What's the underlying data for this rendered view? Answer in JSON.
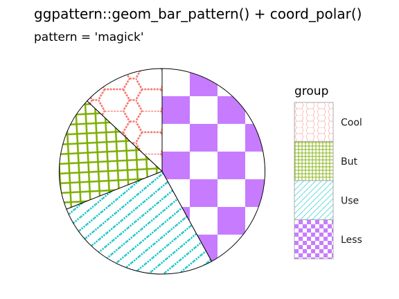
{
  "chart_data": {
    "type": "pie",
    "title": "ggpattern::geom_bar_pattern() + coord_polar()",
    "subtitle": "pattern = 'magick'",
    "legend": {
      "title": "group",
      "placement": "right"
    },
    "slices": [
      {
        "name": "Less",
        "value": 0.42,
        "fill": "#C77CFF",
        "pattern": "checkerboard"
      },
      {
        "name": "Use",
        "value": 0.27,
        "fill": "#00BFC4",
        "pattern": "diagonal-dashes"
      },
      {
        "name": "But",
        "value": 0.18,
        "fill": "#7CAE00",
        "pattern": "grid"
      },
      {
        "name": "Cool",
        "value": 0.13,
        "fill": "#F8766D",
        "pattern": "hexagons"
      }
    ],
    "legend_order": [
      "Cool",
      "But",
      "Use",
      "Less"
    ]
  }
}
